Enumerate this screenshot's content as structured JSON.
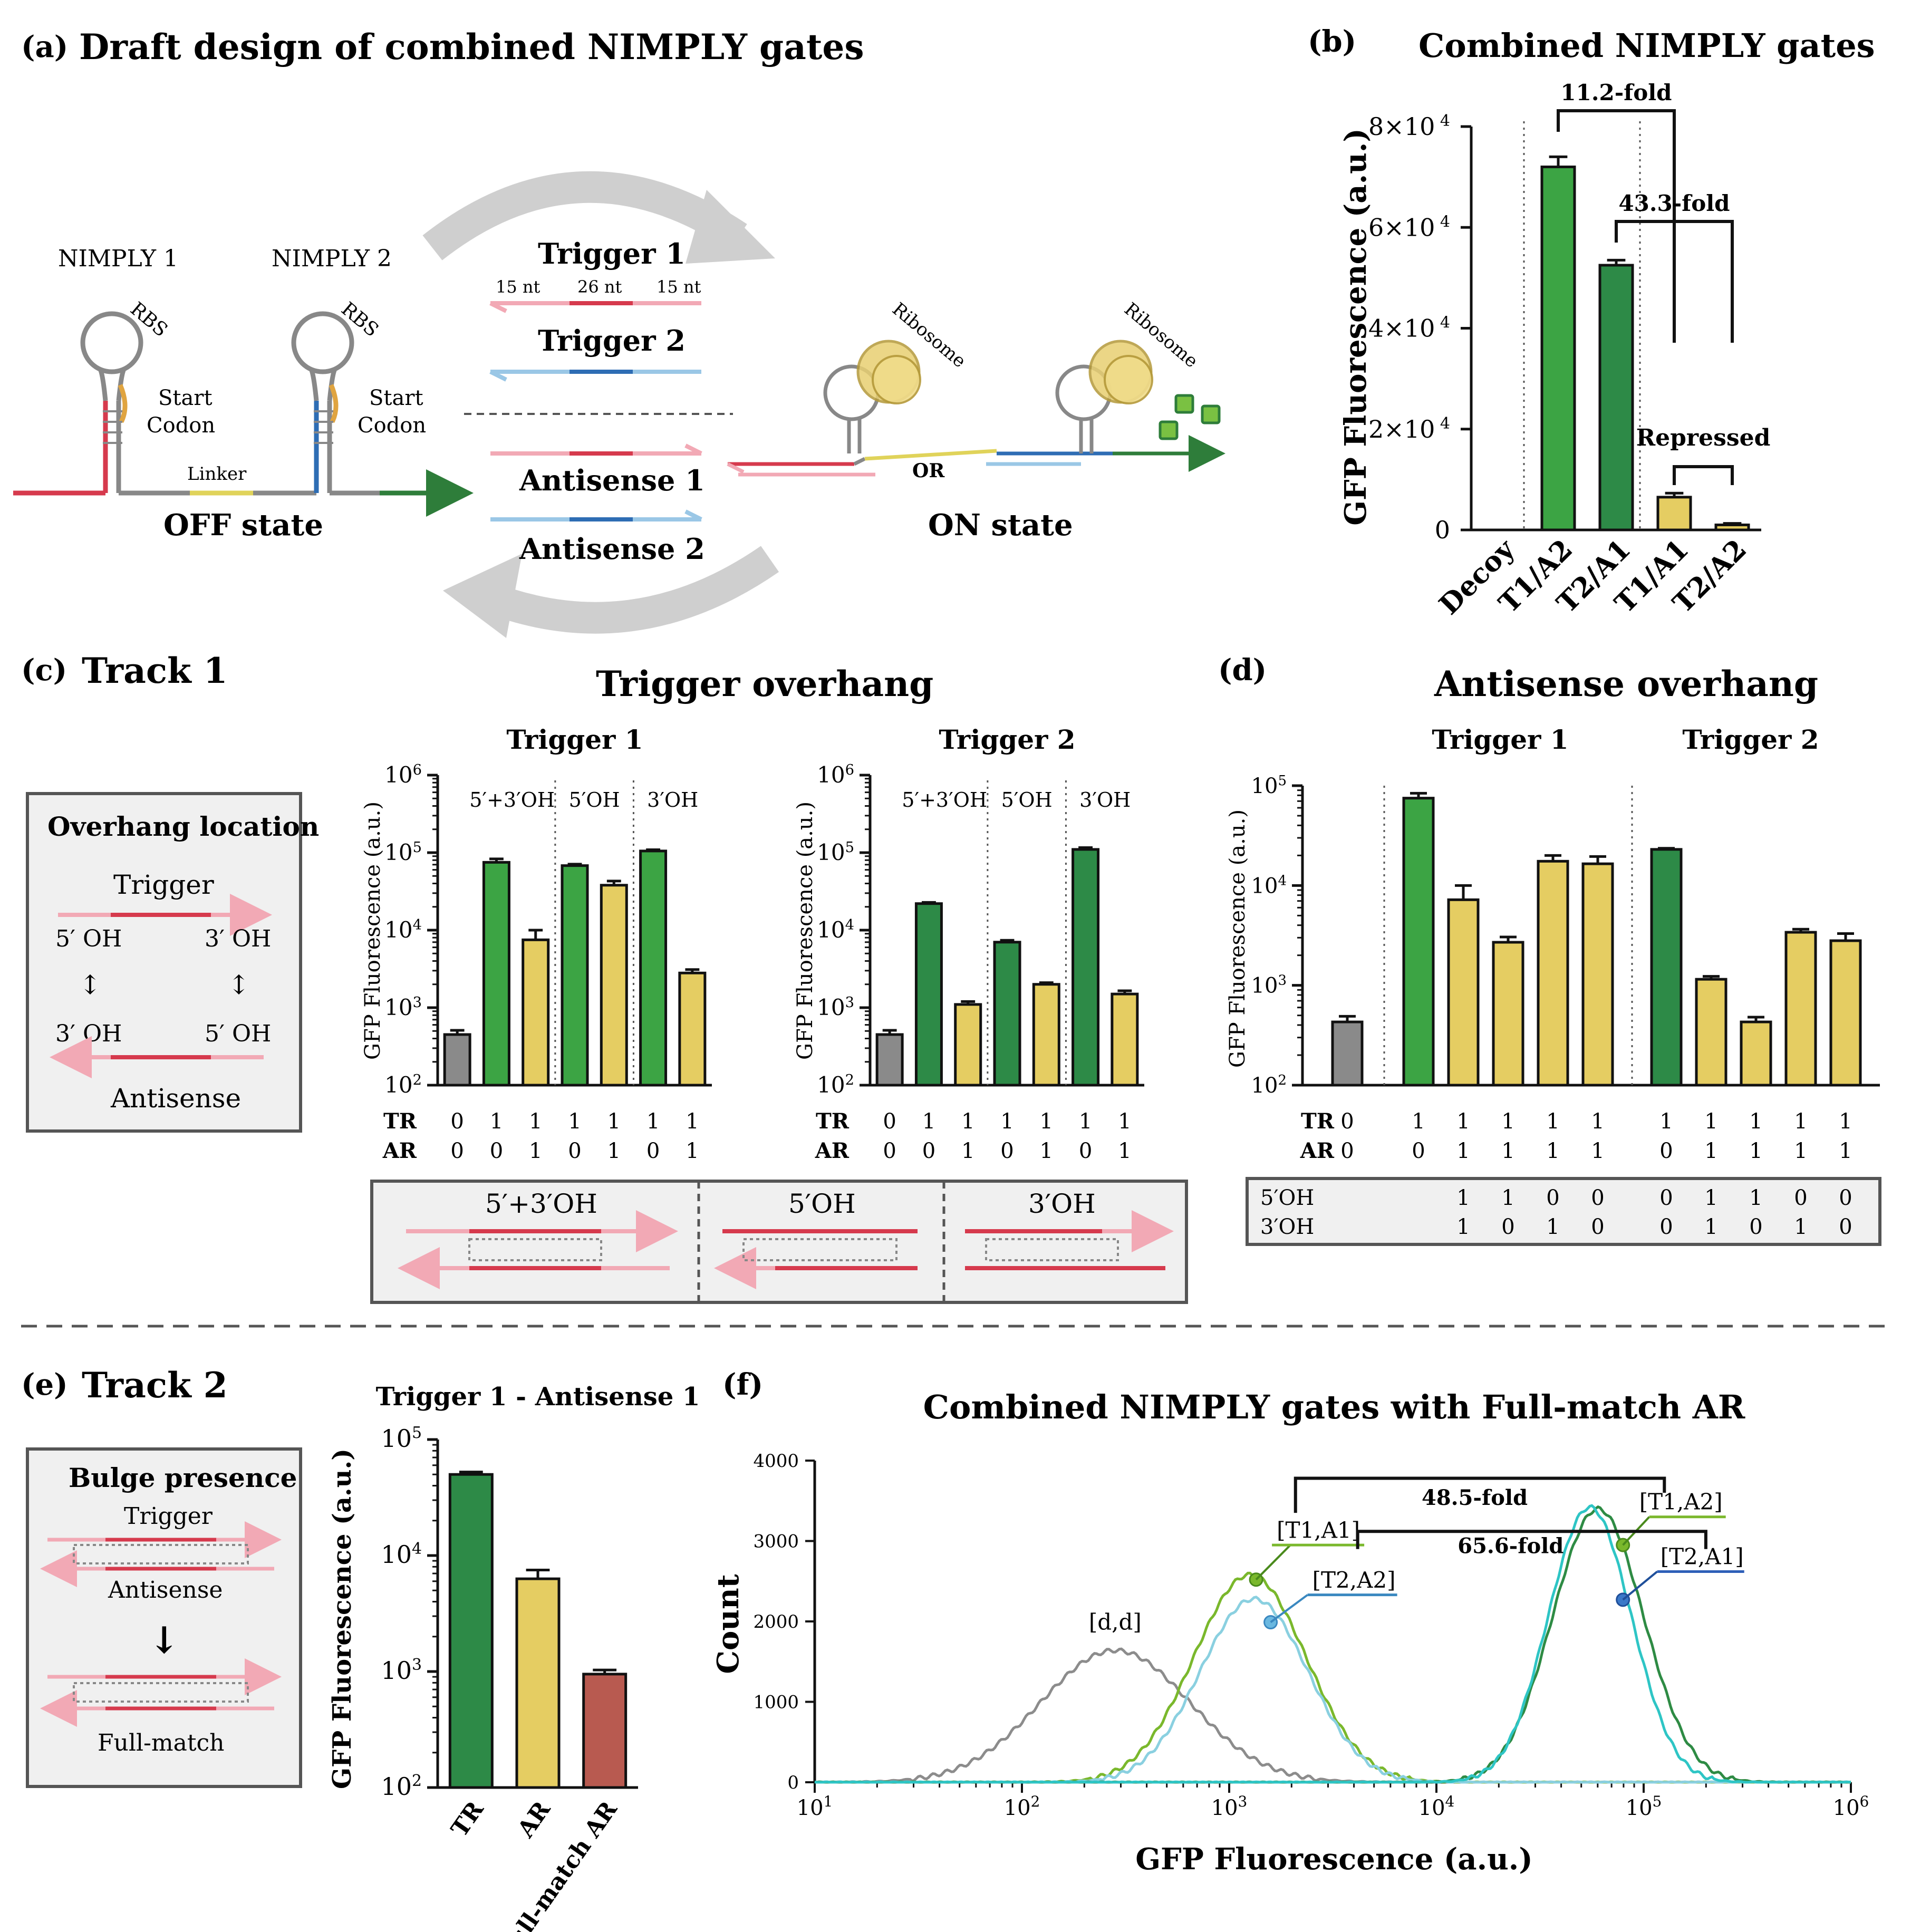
{
  "panel_a": {
    "label": "(a)",
    "title": "Draft design of combined NIMPLY gates",
    "nimply1": "NIMPLY 1",
    "nimply2": "NIMPLY 2",
    "rbs": "RBS",
    "start_codon_1": "Start",
    "start_codon_2": "Codon",
    "linker": "Linker",
    "off_state": "OFF state",
    "on_state": "ON state",
    "trigger1": "Trigger 1",
    "trigger2": "Trigger 2",
    "antisense1": "Antisense 1",
    "antisense2": "Antisense 2",
    "nt_15a": "15 nt",
    "nt_26": "26 nt",
    "nt_15b": "15 nt",
    "ribosome": "Ribosome",
    "or": "OR"
  },
  "panel_b_header": {
    "label": "(b)",
    "title": "Combined NIMPLY gates"
  },
  "panel_c_header": {
    "label": "(c)",
    "track": "Track 1",
    "title": "Trigger overhang",
    "box_title": "Overhang location",
    "box_trigger": "Trigger",
    "box_antisense": "Antisense",
    "oh5": "5′ OH",
    "oh3": "3′ OH",
    "updown": "↕",
    "strip_a": "5′+3′OH",
    "strip_b": "5′OH",
    "strip_c": "3′OH"
  },
  "panel_d_header": {
    "label": "(d)",
    "title": "Antisense overhang"
  },
  "panel_e_header": {
    "label": "(e)",
    "track": "Track 2",
    "box_title": "Bulge presence",
    "box_trigger": "Trigger",
    "box_antisense": "Antisense",
    "arrow": "↓",
    "box_full": "Full-match"
  },
  "panel_f_header": {
    "label": "(f)"
  },
  "chart_data": [
    {
      "id": "b",
      "type": "bar",
      "title": "Combined NIMPLY gates",
      "ylabel": "GFP Fluorescence (a.u.)",
      "ylim": [
        0,
        80000
      ],
      "yticks": [
        "0",
        "2×10",
        "4×10",
        "6×10",
        "8×10"
      ],
      "ytick_exp": "4",
      "categories": [
        "Decoy",
        "T1/A2",
        "T2/A1",
        "T1/A1",
        "T2/A2"
      ],
      "values": [
        0,
        72000,
        52500,
        6500,
        1000
      ],
      "errors": [
        0,
        2000,
        1000,
        800,
        300
      ],
      "colors": [
        "#8a8a8a",
        "#3ca444",
        "#2d8a47",
        "#e5cd62",
        "#e5cd62"
      ],
      "annotations": [
        "11.2-fold",
        "43.3-fold",
        "Repressed"
      ]
    },
    {
      "id": "c1",
      "type": "bar",
      "scale": "log",
      "title": "Trigger 1",
      "ylabel": "GFP Fluorescence (a.u.)",
      "ylim": [
        100,
        1000000
      ],
      "section_labels": [
        "5′+3′OH",
        "5′OH",
        "3′OH"
      ],
      "values": [
        450,
        75000,
        7500,
        68000,
        38000,
        105000,
        2800
      ],
      "errors": [
        60,
        8000,
        2500,
        3000,
        5000,
        4000,
        300
      ],
      "TR": [
        "0",
        "1",
        "1",
        "1",
        "1",
        "1",
        "1"
      ],
      "AR": [
        "0",
        "0",
        "1",
        "0",
        "1",
        "0",
        "1"
      ],
      "colors": [
        "#8a8a8a",
        "#3ca444",
        "#e5cd62",
        "#3ca444",
        "#e5cd62",
        "#3ca444",
        "#e5cd62"
      ]
    },
    {
      "id": "c2",
      "type": "bar",
      "scale": "log",
      "title": "Trigger 2",
      "ylabel": "GFP Fluorescence (a.u.)",
      "ylim": [
        100,
        1000000
      ],
      "section_labels": [
        "5′+3′OH",
        "5′OH",
        "3′OH"
      ],
      "values": [
        450,
        22000,
        1100,
        7000,
        2000,
        110000,
        1500
      ],
      "errors": [
        60,
        800,
        100,
        400,
        100,
        6000,
        150
      ],
      "TR": [
        "0",
        "1",
        "1",
        "1",
        "1",
        "1",
        "1"
      ],
      "AR": [
        "0",
        "0",
        "1",
        "0",
        "1",
        "0",
        "1"
      ],
      "colors": [
        "#8a8a8a",
        "#2d8a47",
        "#e5cd62",
        "#2d8a47",
        "#e5cd62",
        "#2d8a47",
        "#e5cd62"
      ]
    },
    {
      "id": "d",
      "type": "bar",
      "scale": "log",
      "title": "Antisense overhang",
      "ylabel": "GFP Fluorescence (a.u.)",
      "ylim": [
        100,
        100000
      ],
      "group_labels": [
        "Trigger 1",
        "Trigger 2"
      ],
      "values": [
        430,
        75000,
        7200,
        2700,
        17500,
        16500,
        23000,
        1150,
        430,
        3400,
        2800
      ],
      "errors": [
        60,
        9000,
        2800,
        350,
        2500,
        3000,
        600,
        80,
        50,
        250,
        500
      ],
      "TR": [
        "0",
        "1",
        "1",
        "1",
        "1",
        "1",
        "1",
        "1",
        "1",
        "1",
        "1"
      ],
      "AR": [
        "0",
        "0",
        "1",
        "1",
        "1",
        "1",
        "0",
        "1",
        "1",
        "1",
        "1"
      ],
      "OH5": [
        "",
        "",
        "1",
        "1",
        "0",
        "0",
        "0",
        "1",
        "1",
        "0",
        "0"
      ],
      "OH3": [
        "",
        "",
        "1",
        "0",
        "1",
        "0",
        "0",
        "1",
        "0",
        "1",
        "0"
      ],
      "row_labels": [
        "5′OH",
        "3′OH"
      ],
      "colors": [
        "#8a8a8a",
        "#3ca444",
        "#e5cd62",
        "#e5cd62",
        "#e5cd62",
        "#e5cd62",
        "#2d8a47",
        "#e5cd62",
        "#e5cd62",
        "#e5cd62",
        "#e5cd62"
      ]
    },
    {
      "id": "e",
      "type": "bar",
      "scale": "log",
      "title": "Trigger 1 - Antisense 1",
      "ylabel": "GFP Fluorescence (a.u.)",
      "ylim": [
        100,
        100000
      ],
      "categories": [
        "TR",
        "AR",
        "Full-match AR"
      ],
      "values": [
        50000,
        6300,
        950
      ],
      "errors": [
        2500,
        1200,
        80
      ],
      "colors": [
        "#2d8a47",
        "#e5cd62",
        "#b85a50"
      ]
    },
    {
      "id": "f",
      "type": "line",
      "xscale": "log",
      "title": "Combined NIMPLY gates with Full-match AR",
      "xlabel": "GFP Fluorescence (a.u.)",
      "ylabel": "Count",
      "xlim": [
        10,
        1000000
      ],
      "ylim": [
        0,
        4000
      ],
      "yticks": [
        "0",
        "1000",
        "2000",
        "3000",
        "4000"
      ],
      "series": [
        {
          "name": "[d,d]",
          "color": "#8c8c8c",
          "center_log": 2.45,
          "sigma": 0.36,
          "peak": 1640
        },
        {
          "name": "[T1,A1]",
          "color": "#7ab82c",
          "center_log": 3.1,
          "sigma": 0.27,
          "peak": 2580
        },
        {
          "name": "[T2,A2]",
          "color": "#8ad0e0",
          "center_log": 3.12,
          "sigma": 0.26,
          "peak": 2280
        },
        {
          "name": "[T1,A2]",
          "color": "#2e8b44",
          "center_log": 4.78,
          "sigma": 0.22,
          "peak": 3400
        },
        {
          "name": "[T2,A1]",
          "color": "#2ec5c5",
          "center_log": 4.74,
          "sigma": 0.2,
          "peak": 3420
        }
      ],
      "annotations": [
        "48.5-fold",
        "65.6-fold"
      ]
    }
  ]
}
